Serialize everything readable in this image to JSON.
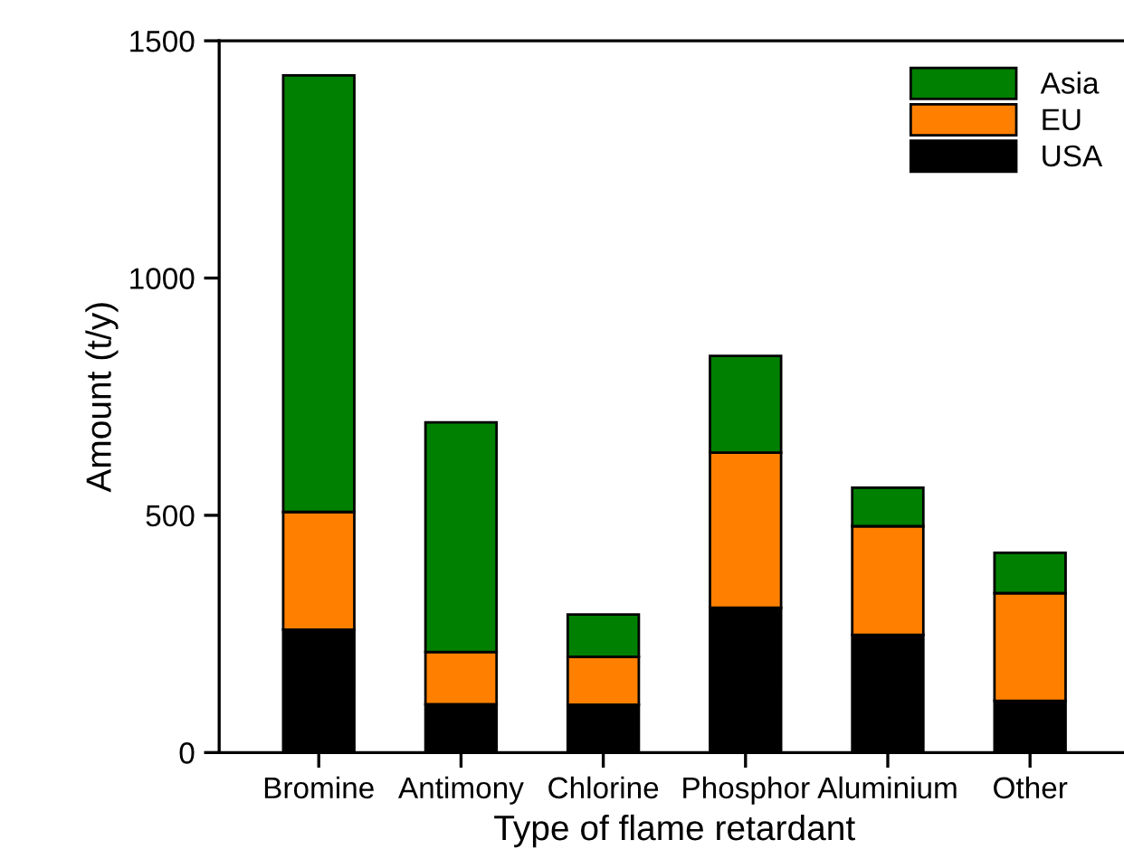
{
  "chart_data": {
    "type": "bar",
    "stacked": true,
    "xlabel": "Type of flame retardant",
    "ylabel": "Amount (t/y)",
    "categories": [
      "Bromine",
      "Antimony",
      "Chlorine",
      "Phosphor",
      "Aluminium",
      "Other"
    ],
    "series": [
      {
        "name": "USA",
        "color": "#000000",
        "values": [
          259,
          102,
          101,
          305,
          248,
          109
        ]
      },
      {
        "name": "EU",
        "color": "#ff8000",
        "values": [
          248,
          110,
          101,
          327,
          229,
          227
        ]
      },
      {
        "name": "Asia",
        "color": "#008000",
        "values": [
          920,
          484,
          89,
          204,
          81,
          85
        ]
      }
    ],
    "ylim": [
      0,
      1500
    ],
    "yticks": [
      0,
      500,
      1000,
      1500
    ],
    "grid": false,
    "legend": "top right"
  }
}
